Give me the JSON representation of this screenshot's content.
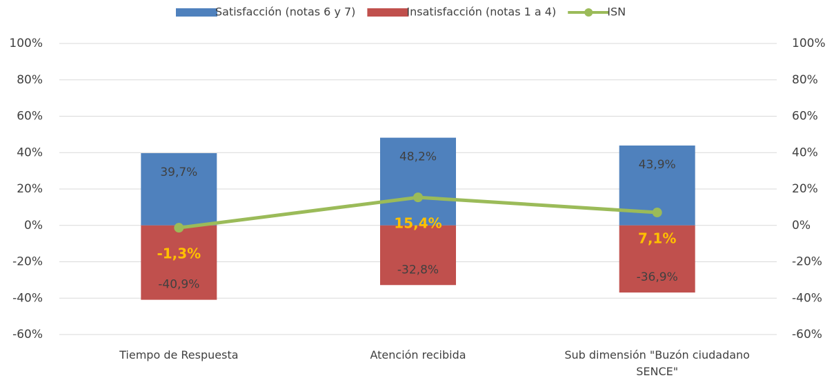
{
  "chart_data": {
    "type": "bar",
    "categories": [
      "Tiempo de Respuesta",
      "Atención recibida",
      "Sub dimensión \"Buzón ciudadano SENCE\""
    ],
    "series": [
      {
        "name": "Satisfacción (notas 6 y 7)",
        "color": "#4f81bd",
        "values": [
          39.7,
          48.2,
          43.9
        ],
        "value_labels": [
          "39,7%",
          "48,2%",
          "43,9%"
        ]
      },
      {
        "name": "Insatisfacción (notas 1 a 4)",
        "color": "#c0504d",
        "values": [
          -40.9,
          -32.8,
          -36.9
        ],
        "value_labels": [
          "-40,9%",
          "-32,8%",
          "-36,9%"
        ]
      },
      {
        "name": "ISN",
        "type": "line",
        "axis": "y2",
        "color": "#9bbb59",
        "label_color": "#ffc000",
        "values": [
          -1.3,
          15.4,
          7.1
        ],
        "value_labels": [
          "-1,3%",
          "15,4%",
          "7,1%"
        ]
      }
    ],
    "ylim": [
      -60,
      100
    ],
    "yticks": [
      {
        "value": -60,
        "label": "-60%"
      },
      {
        "value": -40,
        "label": "-40%"
      },
      {
        "value": -20,
        "label": "-20%"
      },
      {
        "value": 0,
        "label": "0%"
      },
      {
        "value": 20,
        "label": "20%"
      },
      {
        "value": 40,
        "label": "40%"
      },
      {
        "value": 60,
        "label": "60%"
      },
      {
        "value": 80,
        "label": "80%"
      },
      {
        "value": 100,
        "label": "100%"
      }
    ],
    "y2lim": [
      -60,
      100
    ],
    "y2ticks": [
      {
        "value": -60,
        "label": "-60%"
      },
      {
        "value": -40,
        "label": "-40%"
      },
      {
        "value": -20,
        "label": "-20%"
      },
      {
        "value": 0,
        "label": "0%"
      },
      {
        "value": 20,
        "label": "20%"
      },
      {
        "value": 40,
        "label": "40%"
      },
      {
        "value": 60,
        "label": "60%"
      },
      {
        "value": 80,
        "label": "80%"
      },
      {
        "value": 100,
        "label": "100%"
      }
    ],
    "grid": true,
    "legend": "top"
  }
}
